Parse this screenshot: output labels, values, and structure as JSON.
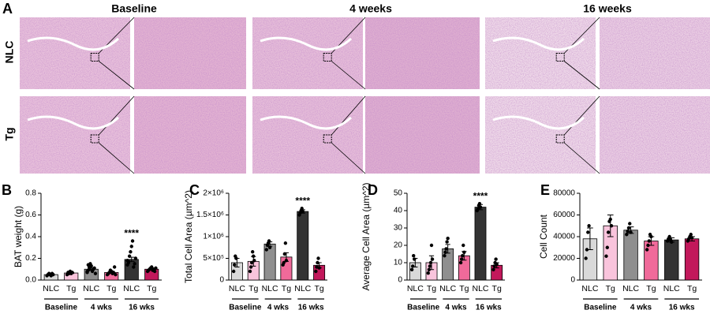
{
  "panel_a": {
    "letter": "A",
    "columns": [
      "Baseline",
      "4 weeks",
      "16 weeks"
    ],
    "rows": [
      "NLC",
      "Tg"
    ]
  },
  "chart_data": [
    {
      "type": "bar",
      "letter": "B",
      "y_label": "BAT weight (g)",
      "categories": [
        "NLC",
        "Tg",
        "NLC",
        "Tg",
        "NLC",
        "Tg"
      ],
      "groups": [
        "Baseline",
        "4 wks",
        "16 wks"
      ],
      "colors": [
        "#d9d9d9",
        "#f9c4dc",
        "#8f8f8f",
        "#f06a9a",
        "#333333",
        "#c2185b"
      ],
      "values": [
        0.05,
        0.065,
        0.1,
        0.07,
        0.19,
        0.1
      ],
      "errors": [
        0.005,
        0.005,
        0.012,
        0.008,
        0.02,
        0.006
      ],
      "points": [
        [
          0.04,
          0.05,
          0.06,
          0.05,
          0.04,
          0.06,
          0.05
        ],
        [
          0.05,
          0.07,
          0.06,
          0.08,
          0.06,
          0.07
        ],
        [
          0.07,
          0.09,
          0.12,
          0.15,
          0.13,
          0.08,
          0.1,
          0.11,
          0.06,
          0.08,
          0.14,
          0.1
        ],
        [
          0.05,
          0.06,
          0.07,
          0.09,
          0.08,
          0.06,
          0.07,
          0.12,
          0.05
        ],
        [
          0.14,
          0.17,
          0.22,
          0.26,
          0.31,
          0.36,
          0.12,
          0.15,
          0.2,
          0.18,
          0.16
        ],
        [
          0.08,
          0.09,
          0.1,
          0.11,
          0.12,
          0.09,
          0.1,
          0.08,
          0.11
        ]
      ],
      "annotation": "****",
      "ylim": [
        0,
        0.8
      ],
      "yticks": [
        {
          "value": 0,
          "label": "0.0"
        },
        {
          "value": 0.2,
          "label": "0.2"
        },
        {
          "value": 0.4,
          "label": "0.4"
        },
        {
          "value": 0.6,
          "label": "0.6"
        },
        {
          "value": 0.8,
          "label": "0.8"
        }
      ]
    },
    {
      "type": "bar",
      "letter": "C",
      "y_label": "Total Cell Area (µm^2)",
      "categories": [
        "NLC",
        "Tg",
        "NLC",
        "Tg",
        "NLC",
        "Tg"
      ],
      "groups": [
        "Baseline",
        "4 wks",
        "16 wks"
      ],
      "colors": [
        "#d9d9d9",
        "#f9c4dc",
        "#8f8f8f",
        "#f06a9a",
        "#333333",
        "#c2185b"
      ],
      "values": [
        400000,
        430000,
        830000,
        530000,
        1580000,
        340000
      ],
      "errors": [
        100000,
        110000,
        50000,
        100000,
        40000,
        60000
      ],
      "points": [
        [
          200000,
          350000,
          550000,
          500000
        ],
        [
          200000,
          300000,
          400000,
          650000,
          550000,
          450000
        ],
        [
          700000,
          800000,
          850000,
          900000,
          750000
        ],
        [
          350000,
          400000,
          600000,
          850000,
          450000
        ],
        [
          1500000,
          1550000,
          1600000,
          1650000,
          1580000
        ],
        [
          200000,
          300000,
          400000,
          500000,
          280000
        ]
      ],
      "annotation": "****",
      "ylim": [
        0,
        2000000
      ],
      "yticks": [
        0,
        {
          "value": 500000,
          "label": "5×10⁵"
        },
        {
          "value": 1000000,
          "label": "1×10⁶"
        },
        {
          "value": 1500000,
          "label": "1.5×10⁶"
        },
        {
          "value": 2000000,
          "label": "2×10⁶"
        }
      ]
    },
    {
      "type": "bar",
      "letter": "D",
      "y_label": "Average Cell Area (µm^2)",
      "categories": [
        "NLC",
        "Tg",
        "NLC",
        "Tg",
        "NLC",
        "Tg"
      ],
      "groups": [
        "Baseline",
        "4 wks",
        "16 wks"
      ],
      "colors": [
        "#d9d9d9",
        "#f9c4dc",
        "#8f8f8f",
        "#f06a9a",
        "#333333",
        "#c2185b"
      ],
      "values": [
        10,
        10,
        18,
        14,
        42,
        8.5
      ],
      "errors": [
        2.5,
        4,
        2.5,
        2.5,
        1.5,
        1.5
      ],
      "points": [
        [
          6,
          8,
          14,
          12
        ],
        [
          4,
          6,
          8,
          10,
          20,
          12
        ],
        [
          14,
          16,
          18,
          22,
          24
        ],
        [
          10,
          12,
          14,
          20,
          16
        ],
        [
          40,
          41,
          43,
          44,
          42
        ],
        [
          6,
          8,
          10,
          12,
          9
        ]
      ],
      "annotation": "****",
      "ylim": [
        0,
        50
      ],
      "yticks": [
        0,
        10,
        20,
        30,
        40,
        50
      ]
    },
    {
      "type": "bar",
      "letter": "E",
      "y_label": "Cell Count",
      "categories": [
        "NLC",
        "Tg",
        "NLC",
        "Tg",
        "NLC",
        "Tg"
      ],
      "groups": [
        "Baseline",
        "4 wks",
        "16 wks"
      ],
      "colors": [
        "#d9d9d9",
        "#f9c4dc",
        "#8f8f8f",
        "#f06a9a",
        "#333333",
        "#c2185b"
      ],
      "values": [
        38000,
        50000,
        46000,
        36000,
        37000,
        38000
      ],
      "errors": [
        10000,
        10000,
        3000,
        4000,
        2000,
        2000
      ],
      "points": [
        [
          20000,
          28000,
          44000,
          50000
        ],
        [
          22000,
          30000,
          44000,
          54000,
          56000,
          50000
        ],
        [
          42000,
          45000,
          48000,
          52000,
          44000
        ],
        [
          28000,
          32000,
          36000,
          42000,
          40000
        ],
        [
          36000,
          38000,
          40000,
          37000,
          35000
        ],
        [
          36000,
          38000,
          40000,
          42000,
          39000
        ]
      ],
      "ylim": [
        0,
        80000
      ],
      "yticks": [
        0,
        20000,
        40000,
        60000,
        80000
      ]
    }
  ]
}
